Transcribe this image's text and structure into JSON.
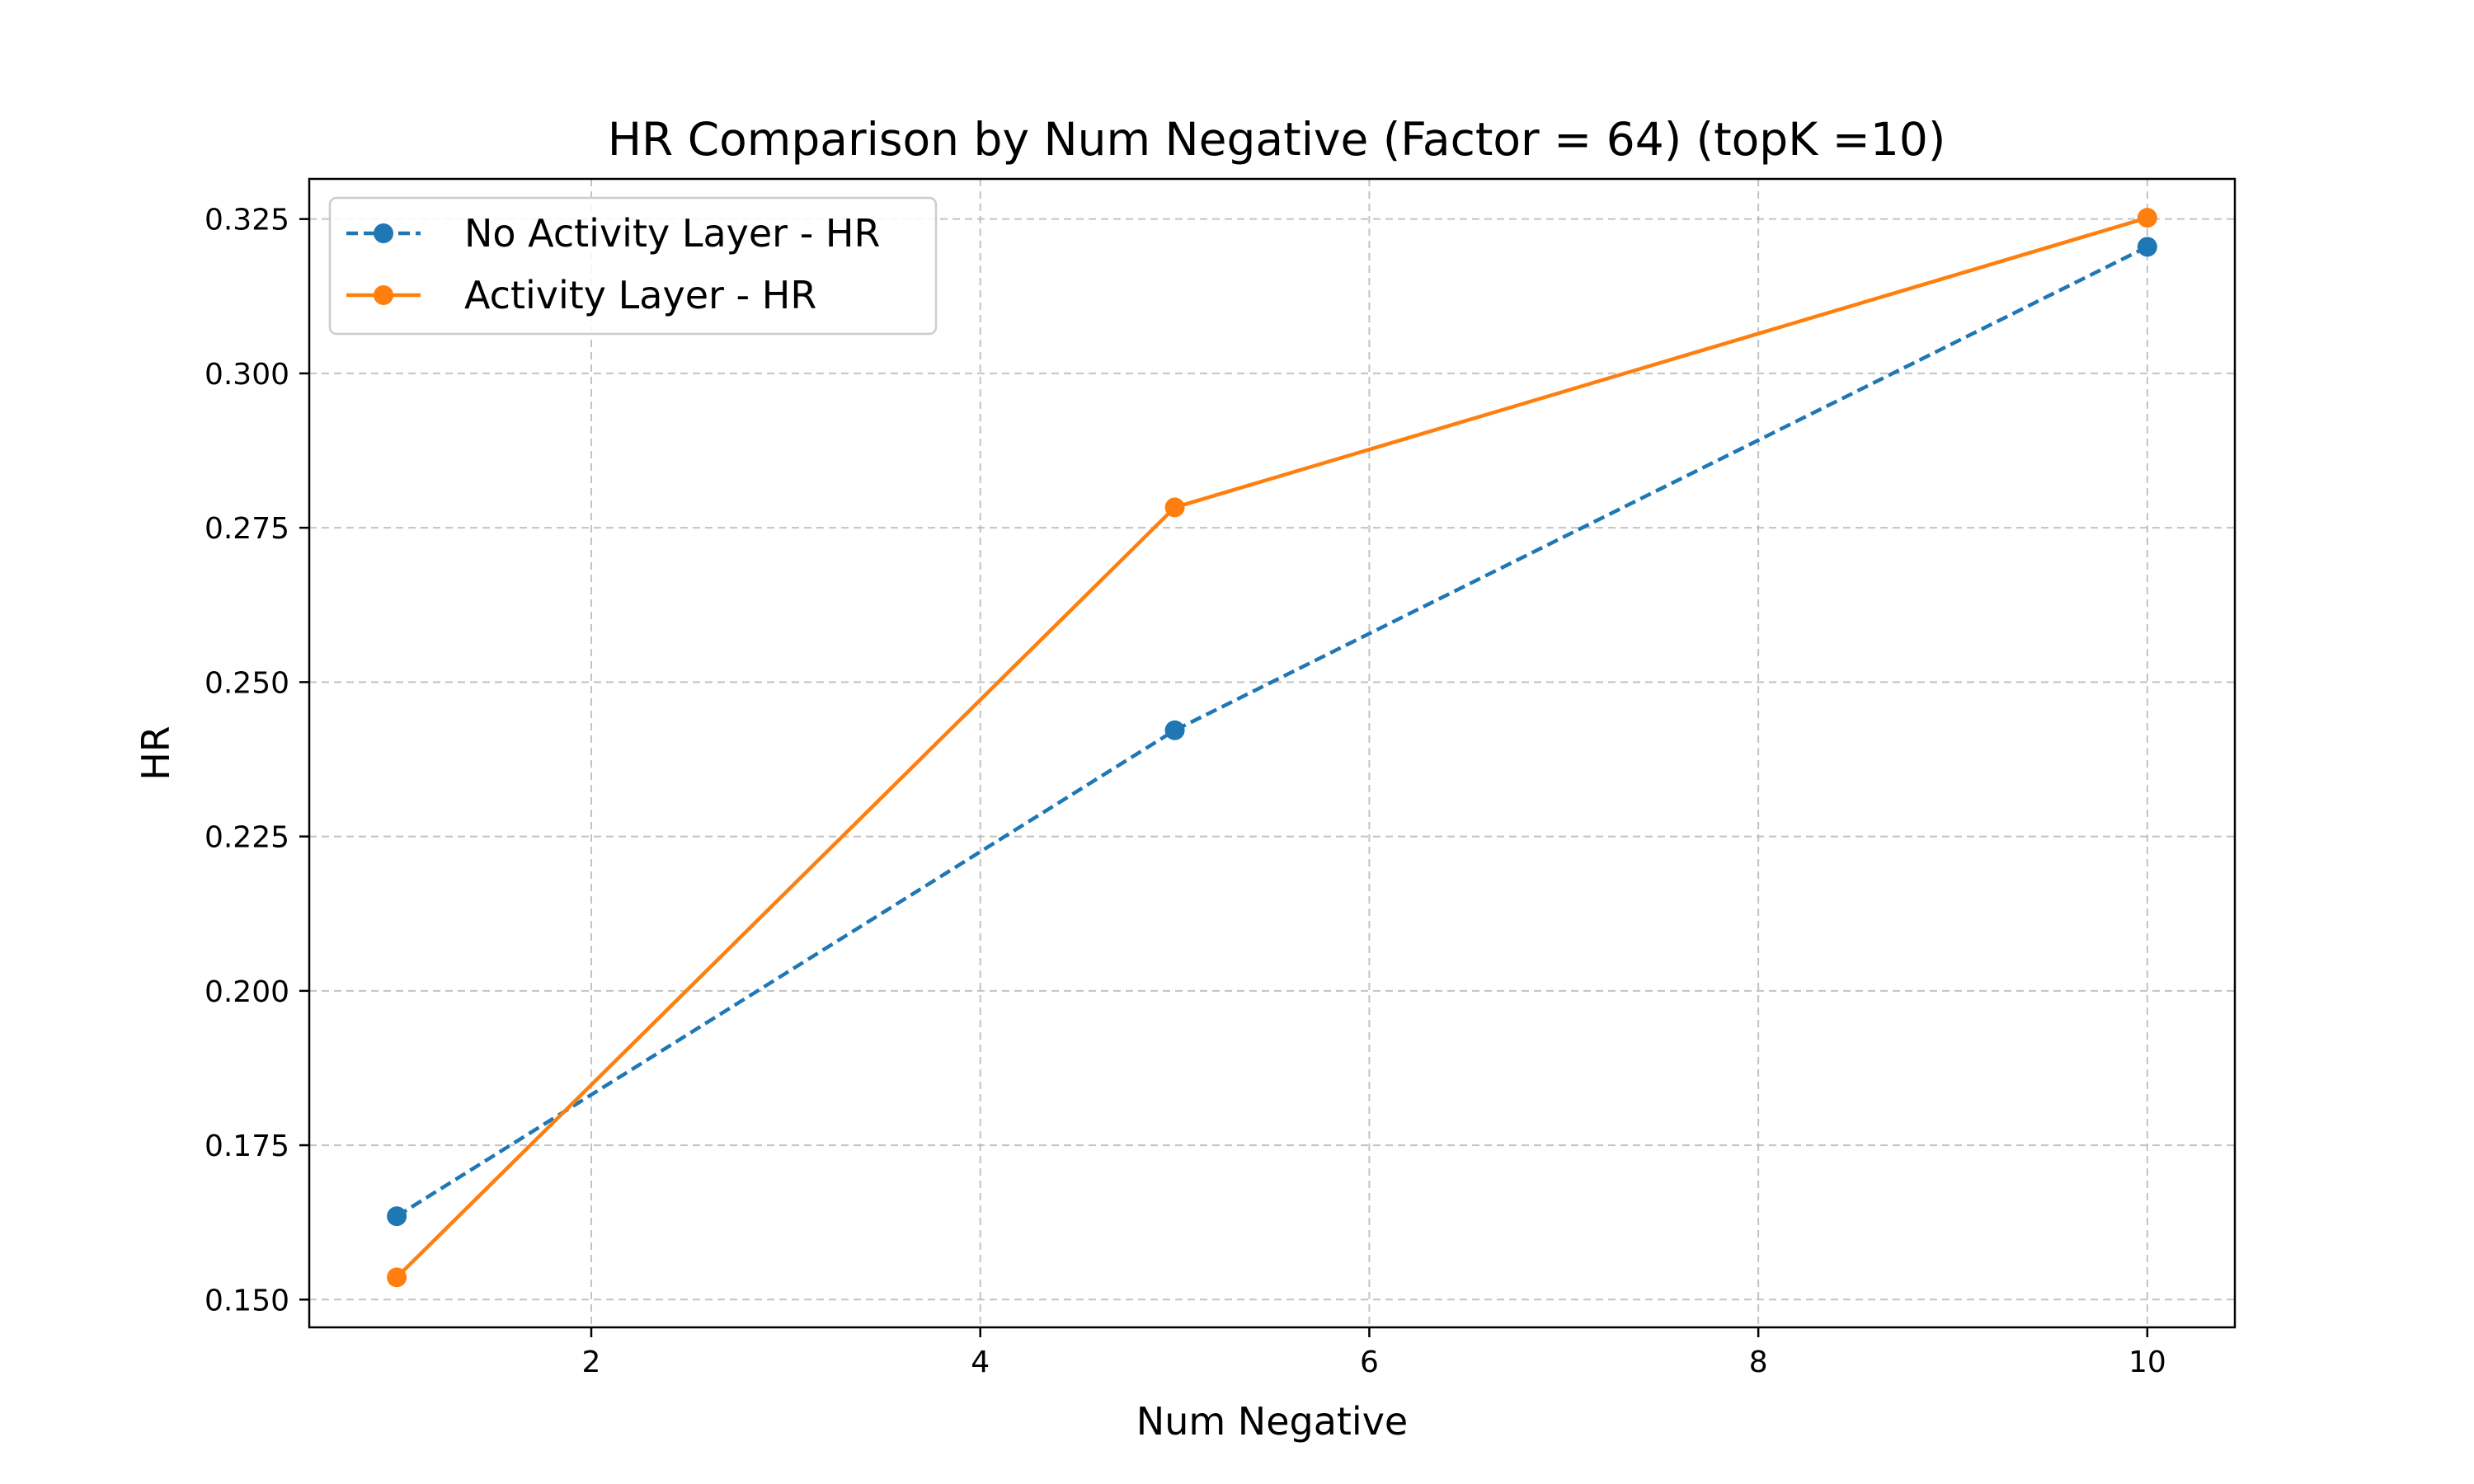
{
  "chart_data": {
    "type": "line",
    "title": "HR Comparison by Num Negative (Factor = 64) (topK =10)",
    "xlabel": "Num Negative",
    "ylabel": "HR",
    "xlim": [
      0.55,
      10.45
    ],
    "ylim": [
      0.1455,
      0.3315
    ],
    "xticks": [
      2,
      4,
      6,
      8,
      10
    ],
    "xtick_labels": [
      "2",
      "4",
      "6",
      "8",
      "10"
    ],
    "yticks": [
      0.15,
      0.175,
      0.2,
      0.225,
      0.25,
      0.275,
      0.3,
      0.325
    ],
    "ytick_labels": [
      "0.150",
      "0.175",
      "0.200",
      "0.225",
      "0.250",
      "0.275",
      "0.300",
      "0.325"
    ],
    "grid": true,
    "legend_position": "upper-left",
    "series": [
      {
        "name": "No Activity Layer - HR",
        "color": "#1f77b4",
        "line_style": "dashed",
        "marker": "circle",
        "x": [
          1,
          5,
          10
        ],
        "y": [
          0.1635,
          0.2422,
          0.3205
        ]
      },
      {
        "name": "Activity Layer - HR",
        "color": "#ff7f0e",
        "line_style": "solid",
        "marker": "circle",
        "x": [
          1,
          5,
          10
        ],
        "y": [
          0.1536,
          0.2783,
          0.3252
        ]
      }
    ]
  }
}
